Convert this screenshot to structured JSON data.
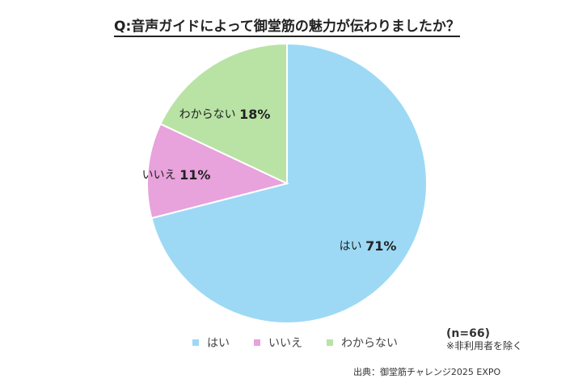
{
  "chart_data": {
    "type": "pie",
    "title": "Q:音声ガイドによって御堂筋の魅力が伝わりましたか？",
    "slices": [
      {
        "label": "はい",
        "value": 71,
        "value_label": "71%",
        "color": "#9dd9f5"
      },
      {
        "label": "いいえ",
        "value": 11,
        "value_label": "11%",
        "color": "#e8a2dc"
      },
      {
        "label": "わからない",
        "value": 18,
        "value_label": "18%",
        "color": "#b8e3a4"
      }
    ],
    "start": "12 o'clock, clockwise",
    "legend_position": "bottom"
  },
  "note": {
    "sample": "(n=66)",
    "exclusion": "※非利用者を除く"
  },
  "source": "出典：御堂筋チャレンジ2025 EXPO"
}
